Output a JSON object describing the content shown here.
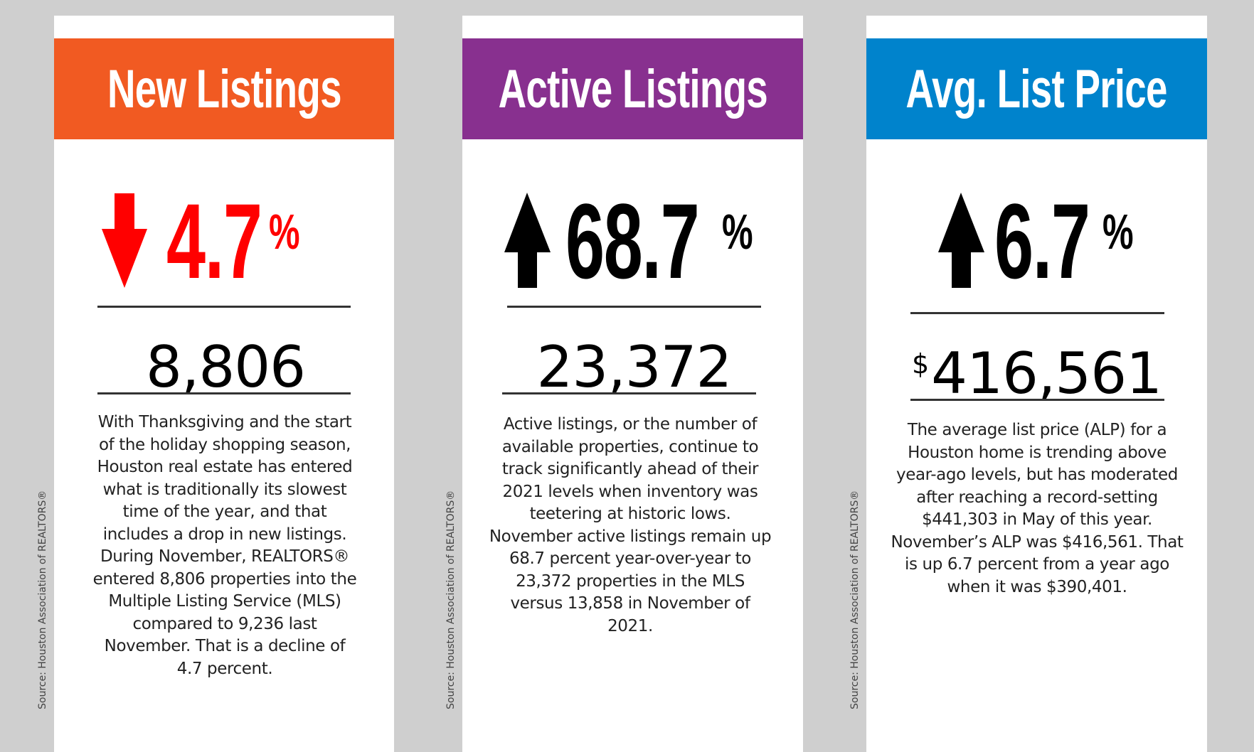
{
  "source_label": "Source: Houston Association of REALTORS®",
  "cards": [
    {
      "title": "New Listings",
      "header_color": "#f15a22",
      "direction": "down",
      "change_percent": "4.7",
      "percent_sign": "%",
      "change_color": "#ff0000",
      "arrow_color": "#ff0000",
      "currency": "",
      "value": "8,806",
      "description": "With Thanksgiving and the start of the holiday shopping season, Houston real estate has entered what is traditionally its slowest time of the year, and that includes a drop in new listings. During November, REALTORS® entered 8,806 properties into the Multiple Listing Service (MLS) compared to 9,236 last November. That is a decline of 4.7 percent."
    },
    {
      "title": "Active Listings",
      "header_color": "#88308f",
      "direction": "up",
      "change_percent": "68.7",
      "percent_sign": "%",
      "change_color": "#000000",
      "arrow_color": "#000000",
      "currency": "",
      "value": "23,372",
      "description": "Active listings, or the number of available properties, continue to track significantly ahead of their 2021 levels when inventory was teetering at historic lows. November active listings remain up 68.7 percent year-over-year to 23,372 properties in the MLS versus 13,858 in November of 2021."
    },
    {
      "title": "Avg. List Price",
      "header_color": "#0083cc",
      "direction": "up",
      "change_percent": "6.7",
      "percent_sign": "%",
      "change_color": "#000000",
      "arrow_color": "#000000",
      "currency": "$",
      "value": "416,561",
      "description": "The average list price (ALP) for a Houston home is trending above year-ago levels, but has moderated after reaching a record-setting $441,303 in May of this year. November’s ALP was $416,561. That is up 6.7 percent from a year ago when it was $390,401."
    }
  ]
}
